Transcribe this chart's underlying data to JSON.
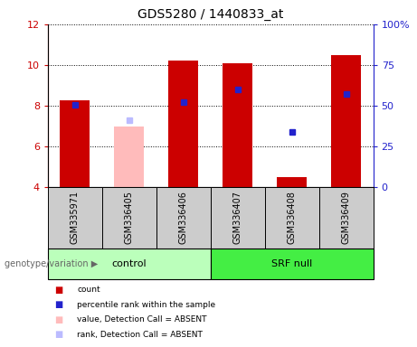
{
  "title": "GDS5280 / 1440833_at",
  "samples": [
    "GSM335971",
    "GSM336405",
    "GSM336406",
    "GSM336407",
    "GSM336408",
    "GSM336409"
  ],
  "absent": [
    "GSM336405"
  ],
  "count_values": [
    8.25,
    7.0,
    10.2,
    10.1,
    4.5,
    10.5
  ],
  "rank_values": [
    8.05,
    7.3,
    8.2,
    8.8,
    6.7,
    8.6
  ],
  "ylim_left": [
    4,
    12
  ],
  "ylim_right": [
    0,
    100
  ],
  "yticks_left": [
    4,
    6,
    8,
    10,
    12
  ],
  "yticks_right": [
    0,
    25,
    50,
    75,
    100
  ],
  "ytick_right_labels": [
    "0",
    "25",
    "50",
    "75",
    "100%"
  ],
  "color_red": "#cc0000",
  "color_blue": "#2222cc",
  "color_pink": "#ffbbbb",
  "color_lightblue": "#bbbbff",
  "color_control_bg": "#bbffbb",
  "color_srf_bg": "#44ee44",
  "color_gray_bg": "#cccccc",
  "genotype_label": "genotype/variation",
  "legend_items": [
    {
      "label": "count",
      "color": "#cc0000"
    },
    {
      "label": "percentile rank within the sample",
      "color": "#2222cc"
    },
    {
      "label": "value, Detection Call = ABSENT",
      "color": "#ffbbbb"
    },
    {
      "label": "rank, Detection Call = ABSENT",
      "color": "#bbbbff"
    }
  ]
}
